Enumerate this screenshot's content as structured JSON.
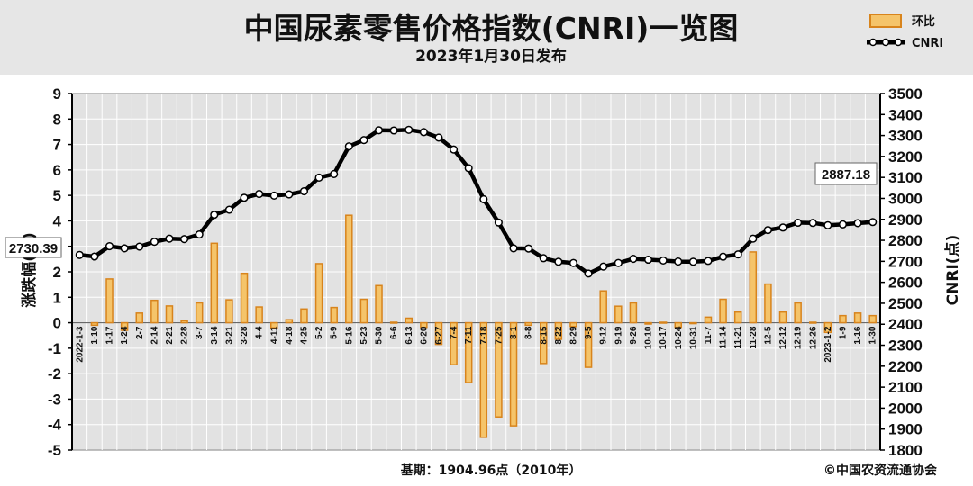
{
  "header": {
    "title": "中国尿素零售价格指数(CNRI)一览图",
    "subtitle": "2023年1月30日发布"
  },
  "footer": {
    "base_note": "基期：1904.96点（2010年）",
    "copyright": "©中国农资流通协会"
  },
  "colors": {
    "header_bg": "#e6e6e6",
    "plot_bg": "#e2e2e2",
    "bar_fill": "#f5c46a",
    "bar_edge": "#d8841c",
    "line": "#000000",
    "marker_fill": "#ffffff"
  },
  "chart_data": {
    "type": "bar+line",
    "categories": [
      "2022-1-3",
      "1-10",
      "1-17",
      "1-24",
      "2-7",
      "2-14",
      "2-21",
      "2-28",
      "3-7",
      "3-14",
      "3-21",
      "3-28",
      "4-4",
      "4-11",
      "4-18",
      "4-25",
      "5-2",
      "5-9",
      "5-16",
      "5-23",
      "5-30",
      "6-6",
      "6-13",
      "6-20",
      "6-27",
      "7-4",
      "7-11",
      "7-18",
      "7-25",
      "8-1",
      "8-8",
      "8-15",
      "8-22",
      "8-29",
      "9-5",
      "9-12",
      "9-19",
      "9-26",
      "10-10",
      "10-17",
      "10-24",
      "10-31",
      "11-7",
      "11-14",
      "11-21",
      "11-28",
      "12-5",
      "12-12",
      "12-19",
      "12-26",
      "2023-1-2",
      "1-9",
      "1-16",
      "1-30"
    ],
    "series": [
      {
        "name": "环比",
        "axis": "left",
        "values": [
          0.0,
          -0.1,
          1.72,
          -0.3,
          0.38,
          0.88,
          0.66,
          0.08,
          0.78,
          3.12,
          0.9,
          1.94,
          0.62,
          -0.2,
          0.12,
          0.54,
          2.32,
          0.6,
          4.22,
          0.92,
          1.46,
          0.02,
          0.18,
          -0.18,
          -0.85,
          -1.65,
          -2.35,
          -4.5,
          -3.7,
          -4.05,
          -0.1,
          -1.6,
          -0.65,
          -0.15,
          -1.75,
          1.25,
          0.65,
          0.78,
          -0.05,
          0.02,
          -0.18,
          -0.02,
          0.22,
          0.92,
          0.42,
          2.78,
          1.52,
          0.42,
          0.78,
          0.02,
          -0.38,
          0.28,
          0.38,
          0.28
        ]
      },
      {
        "name": "CNRI",
        "axis": "right",
        "values": [
          2730.39,
          2723,
          2772,
          2762,
          2770,
          2793,
          2808,
          2806,
          2828,
          2922,
          2946,
          3003,
          3021,
          3013,
          3019,
          3034,
          3099,
          3116,
          3248,
          3278,
          3325,
          3324,
          3327,
          3316,
          3290,
          3233,
          3144,
          2996,
          2885,
          2762,
          2761,
          2715,
          2698,
          2692,
          2642,
          2675,
          2692,
          2712,
          2708,
          2704,
          2699,
          2698,
          2702,
          2722,
          2733,
          2808,
          2849,
          2861,
          2884,
          2883,
          2872,
          2876,
          2882,
          2887.18
        ]
      }
    ],
    "y_left": {
      "label": "涨跌幅(%)",
      "min": -5,
      "max": 9,
      "ticks": [
        "9",
        "8",
        "7",
        "6",
        "5",
        "4",
        "3",
        "2",
        "1",
        "0",
        "-1",
        "-2",
        "-3",
        "-4",
        "-5"
      ]
    },
    "y_right": {
      "label": "CNRI(点)",
      "min": 1800,
      "max": 3500,
      "ticks": [
        "3500",
        "3400",
        "3300",
        "3200",
        "3100",
        "3000",
        "2900",
        "2800",
        "2700",
        "2600",
        "2500",
        "2400",
        "2300",
        "2200",
        "2100",
        "2000",
        "1900",
        "1800"
      ]
    },
    "callouts": {
      "first": "2730.39",
      "last": "2887.18"
    },
    "legend": {
      "position": "top-right",
      "items": [
        "环比",
        "CNRI"
      ]
    },
    "grid": true
  }
}
